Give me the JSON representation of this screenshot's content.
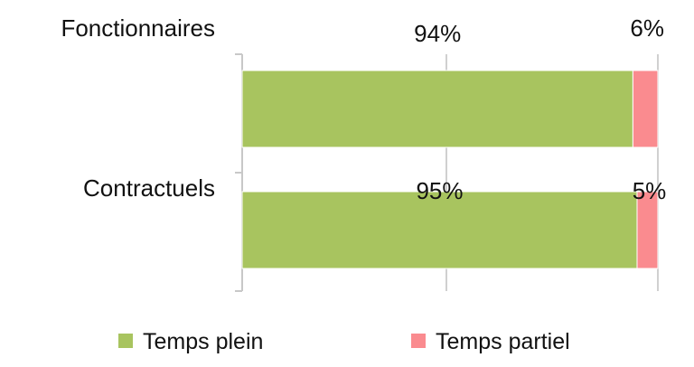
{
  "chart_data": {
    "type": "bar",
    "orientation": "horizontal",
    "stacked": true,
    "percent_stacked": true,
    "categories": [
      "Fonctionnaires",
      "Contractuels"
    ],
    "series": [
      {
        "name": "Temps plein",
        "color": "#a8c45f",
        "values": [
          94,
          95
        ],
        "labels": [
          "94%",
          "95%"
        ]
      },
      {
        "name": "Temps partiel",
        "color": "#fa8b8f",
        "values": [
          6,
          5
        ],
        "labels": [
          "6%",
          "5%"
        ]
      }
    ],
    "xlim": [
      0,
      100
    ],
    "grid": true,
    "legend_position": "bottom"
  }
}
